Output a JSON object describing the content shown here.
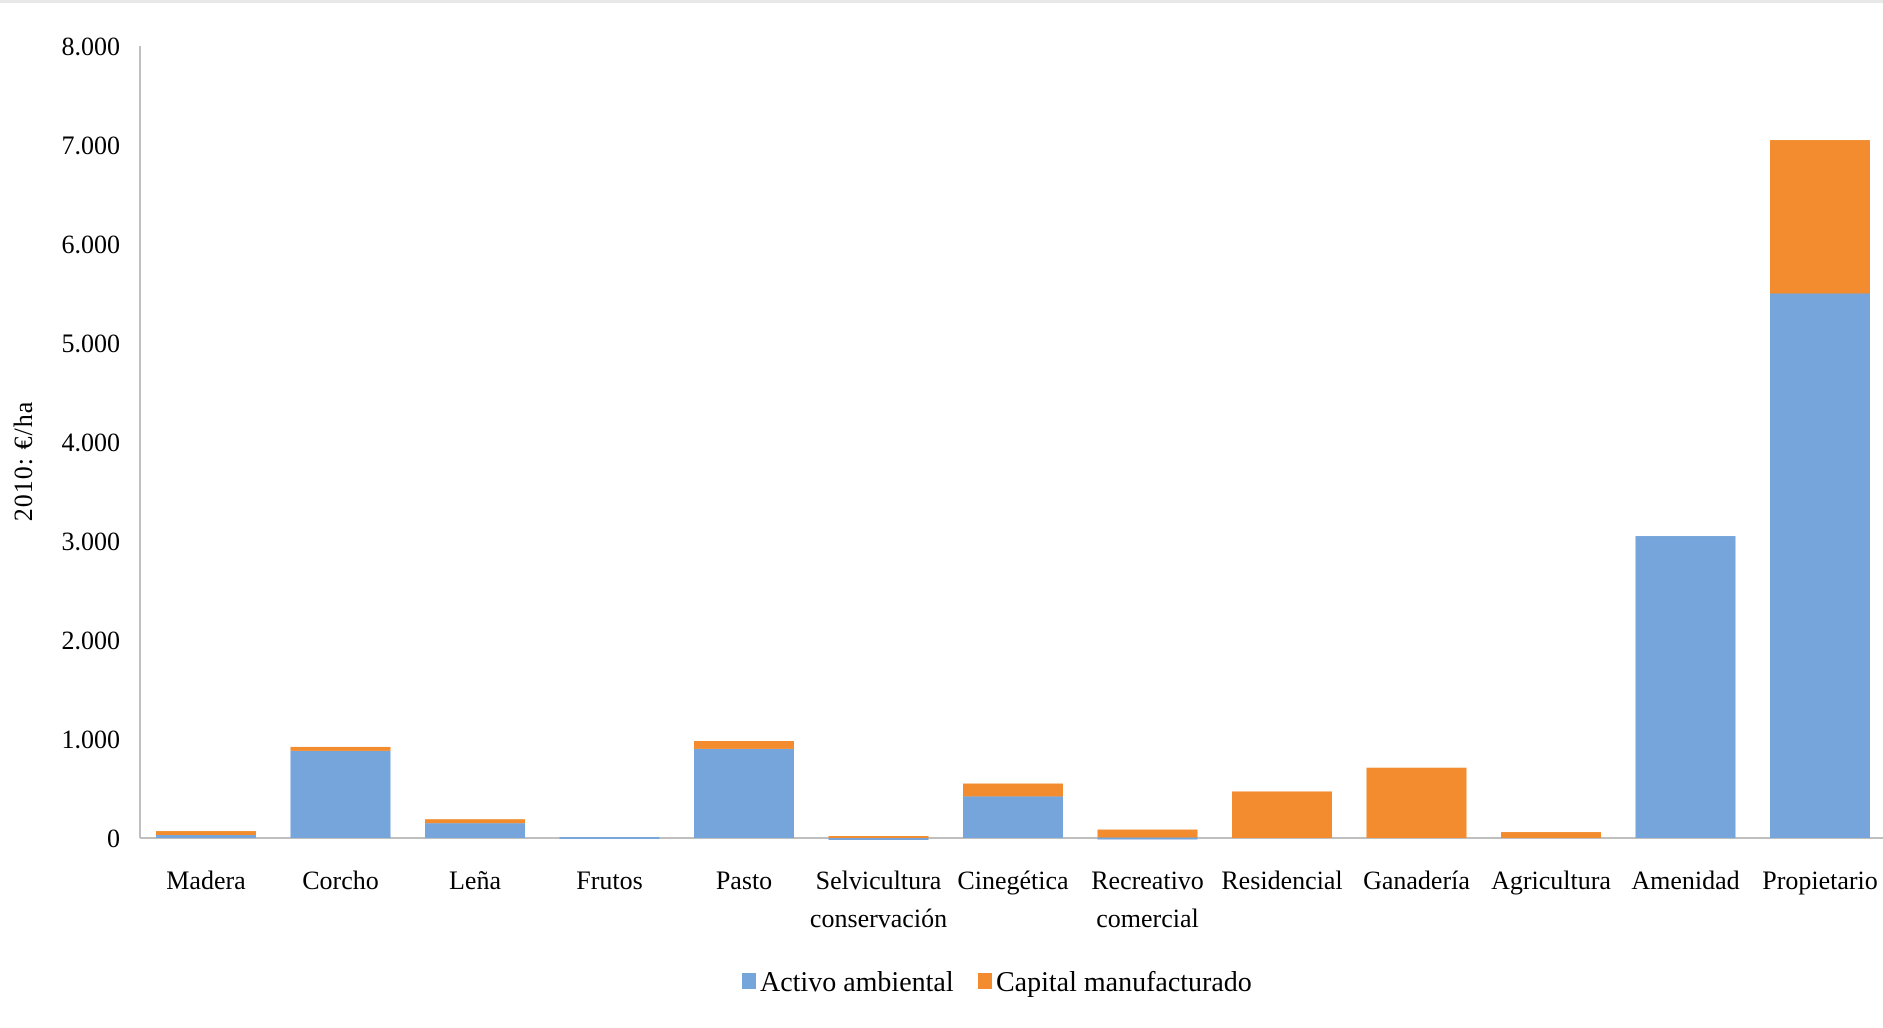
{
  "chart_data": {
    "type": "bar",
    "stacked": true,
    "title": "",
    "xlabel": "",
    "ylabel": "2010: €/ha",
    "ylim": [
      0,
      8000
    ],
    "y_ticks": [
      0,
      1000,
      2000,
      3000,
      4000,
      5000,
      6000,
      7000,
      8000
    ],
    "y_tick_labels": [
      "0",
      "1.000",
      "2.000",
      "3.000",
      "4.000",
      "5.000",
      "6.000",
      "7.000",
      "8.000"
    ],
    "grid": false,
    "legend_position": "bottom",
    "categories": [
      [
        "Madera"
      ],
      [
        "Corcho"
      ],
      [
        "Leña"
      ],
      [
        "Frutos"
      ],
      [
        "Pasto"
      ],
      [
        "Selvicultura",
        "conservación"
      ],
      [
        "Cinegética"
      ],
      [
        "Recreativo",
        "comercial"
      ],
      [
        "Residencial"
      ],
      [
        "Ganadería"
      ],
      [
        "Agricultura"
      ],
      [
        "Amenidad"
      ],
      [
        "Propietario"
      ]
    ],
    "series": [
      {
        "name": "Activo ambiental",
        "color": "#76a5db",
        "values": [
          30,
          880,
          150,
          10,
          900,
          -5,
          420,
          5,
          0,
          0,
          0,
          3050,
          5500
        ]
      },
      {
        "name": "Capital manufacturado",
        "color": "#f28c2e",
        "values": [
          40,
          40,
          40,
          0,
          80,
          20,
          130,
          80,
          470,
          710,
          60,
          0,
          1550
        ]
      }
    ]
  }
}
